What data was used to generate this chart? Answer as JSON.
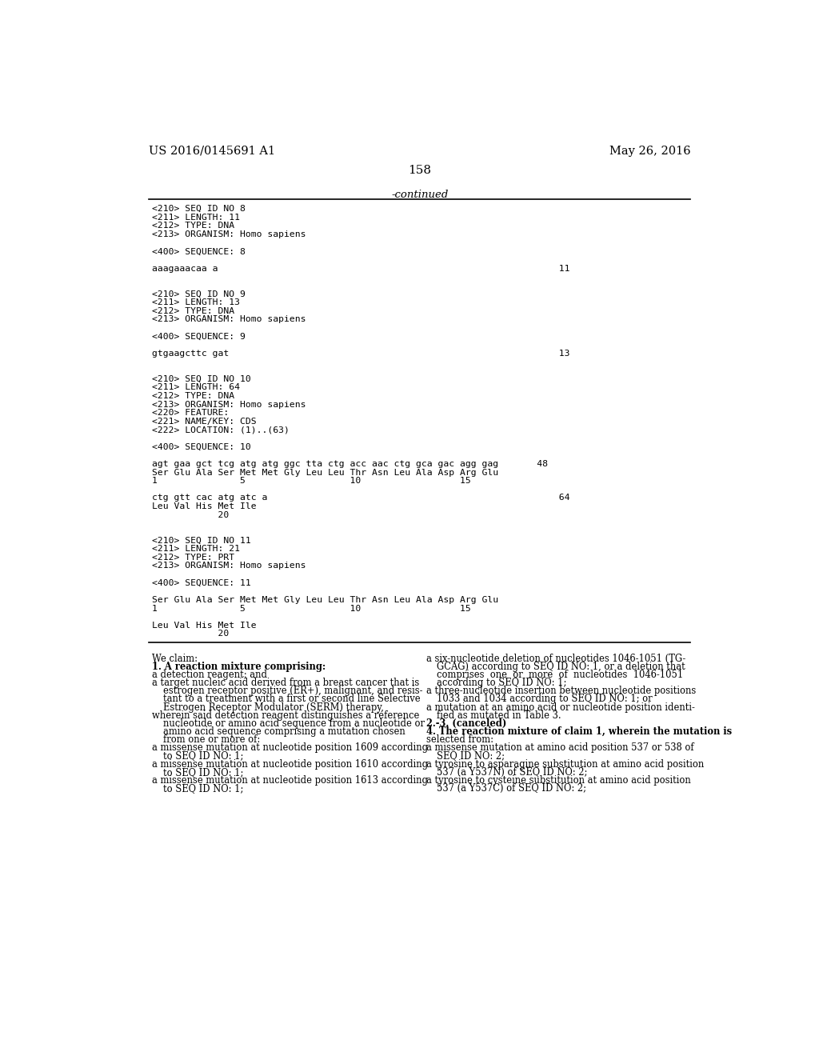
{
  "bg_color": "#ffffff",
  "header_left": "US 2016/0145691 A1",
  "header_right": "May 26, 2016",
  "page_number": "158",
  "continued_label": "-continued",
  "monospace_lines": [
    "<210> SEQ ID NO 8",
    "<211> LENGTH: 11",
    "<212> TYPE: DNA",
    "<213> ORGANISM: Homo sapiens",
    "",
    "<400> SEQUENCE: 8",
    "",
    "aaagaaacaa a                                                              11",
    "",
    "",
    "<210> SEQ ID NO 9",
    "<211> LENGTH: 13",
    "<212> TYPE: DNA",
    "<213> ORGANISM: Homo sapiens",
    "",
    "<400> SEQUENCE: 9",
    "",
    "gtgaagcttc gat                                                            13",
    "",
    "",
    "<210> SEQ ID NO 10",
    "<211> LENGTH: 64",
    "<212> TYPE: DNA",
    "<213> ORGANISM: Homo sapiens",
    "<220> FEATURE:",
    "<221> NAME/KEY: CDS",
    "<222> LOCATION: (1)..(63)",
    "",
    "<400> SEQUENCE: 10",
    "",
    "agt gaa gct tcg atg atg ggc tta ctg acc aac ctg gca gac agg gag       48",
    "Ser Glu Ala Ser Met Met Gly Leu Leu Thr Asn Leu Ala Asp Arg Glu",
    "1               5                   10                  15",
    "",
    "ctg gtt cac atg atc a                                                     64",
    "Leu Val His Met Ile",
    "            20",
    "",
    "",
    "<210> SEQ ID NO 11",
    "<211> LENGTH: 21",
    "<212> TYPE: PRT",
    "<213> ORGANISM: Homo sapiens",
    "",
    "<400> SEQUENCE: 11",
    "",
    "Ser Glu Ala Ser Met Met Gly Leu Leu Thr Asn Leu Ala Asp Arg Glu",
    "1               5                   10                  15",
    "",
    "Leu Val His Met Ile",
    "            20"
  ],
  "claims_col1": [
    [
      "normal",
      "We claim:"
    ],
    [
      "bold",
      "1. A reaction mixture comprising:"
    ],
    [
      "normal",
      "a detection reagent; and"
    ],
    [
      "normal",
      "a target nucleic acid derived from a breast cancer that is"
    ],
    [
      "indent1",
      "estrogen receptor positive (ER+), malignant, and resis-"
    ],
    [
      "indent1",
      "tant to a treatment with a first or second line Selective"
    ],
    [
      "indent1",
      "Estrogen Receptor Modulator (SERM) therapy,"
    ],
    [
      "normal",
      "wherein said detection reagent distinguishes a reference"
    ],
    [
      "indent1",
      "nucleotide or amino acid sequence from a nucleotide or"
    ],
    [
      "indent1",
      "amino acid sequence comprising a mutation chosen"
    ],
    [
      "indent1",
      "from one or more of:"
    ],
    [
      "normal",
      "a missense mutation at nucleotide position 1609 according"
    ],
    [
      "indent1",
      "to SEQ ID NO: 1;"
    ],
    [
      "normal",
      "a missense mutation at nucleotide position 1610 according"
    ],
    [
      "indent1",
      "to SEQ ID NO: 1;"
    ],
    [
      "normal",
      "a missense mutation at nucleotide position 1613 according"
    ],
    [
      "indent1",
      "to SEQ ID NO: 1;"
    ]
  ],
  "claims_col2": [
    [
      "normal",
      "a six-nucleotide deletion of nucleotides 1046-1051 (TG-"
    ],
    [
      "indent1",
      "GCAG) according to SEQ ID NO: 1, or a deletion that"
    ],
    [
      "indent1",
      "comprises  one  or  more  of  nucleotides  1046-1051"
    ],
    [
      "indent1",
      "according to SEQ ID NO: 1;"
    ],
    [
      "normal",
      "a three-nucleotide insertion between nucleotide positions"
    ],
    [
      "indent1",
      "1033 and 1034 according to SEQ ID NO: 1; or"
    ],
    [
      "normal",
      "a mutation at an amino acid or nucleotide position identi-"
    ],
    [
      "indent1",
      "fied as mutated in Table 3."
    ],
    [
      "bold",
      "2.-3. (canceled)"
    ],
    [
      "bold4",
      "4. The reaction mixture of claim 1, wherein the mutation is"
    ],
    [
      "normal",
      "selected from:"
    ],
    [
      "normal",
      "a missense mutation at amino acid position 537 or 538 of"
    ],
    [
      "indent1",
      "SEQ ID NO: 2;"
    ],
    [
      "normal",
      "a tyrosine to asparagine substitution at amino acid position"
    ],
    [
      "indent1",
      "537 (a Y537N) of SEQ ID NO: 2;"
    ],
    [
      "normal",
      "a tyrosine to cysteine substitution at amino acid position"
    ],
    [
      "indent1",
      "537 (a Y537C) of SEQ ID NO: 2;"
    ]
  ]
}
